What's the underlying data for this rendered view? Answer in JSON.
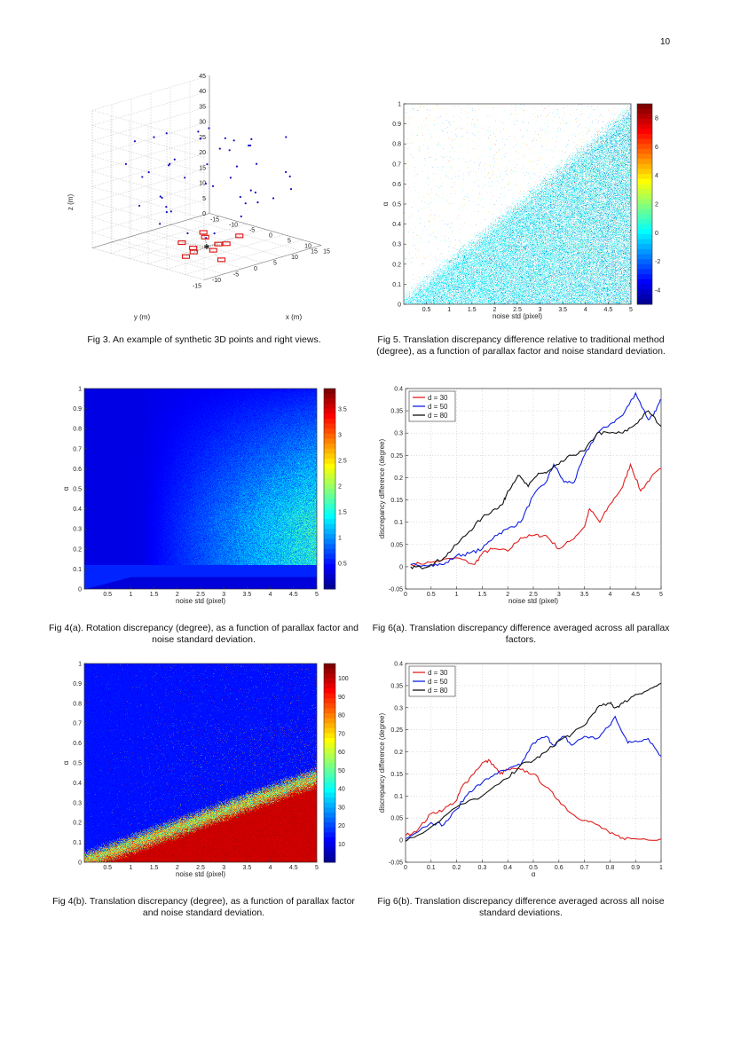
{
  "page_number": "10",
  "figures": {
    "fig3": {
      "caption": "Fig 3. An example of synthetic 3D points and right views."
    },
    "fig5": {
      "caption": "Fig 5. Translation discrepancy difference relative to traditional method (degree), as a function of parallax factor and noise standard deviation."
    },
    "fig4a": {
      "caption": "Fig 4(a). Rotation discrepancy (degree), as a function of parallax factor and noise standard deviation."
    },
    "fig6a": {
      "caption": "Fig 6(a). Translation discrepancy difference averaged across all parallax factors."
    },
    "fig4b": {
      "caption": "Fig 4(b). Translation discrepancy (degree), as a function of parallax factor and noise standard deviation."
    },
    "fig6b": {
      "caption": "Fig 6(b). Translation discrepancy difference averaged across all noise standard deviations."
    }
  },
  "chart_data": [
    {
      "id": "fig3",
      "type": "scatter",
      "projection": "3d",
      "xlabel": "x (m)",
      "ylabel": "y (m)",
      "zlabel": "z (m)",
      "xticks": [
        "-15",
        "-10",
        "-5",
        "0",
        "5",
        "10",
        "15"
      ],
      "yticks": [
        "15",
        "10",
        "5",
        "0",
        "-5",
        "-10",
        "-15"
      ],
      "zticks": [
        "0",
        "5",
        "10",
        "15",
        "20",
        "25",
        "30",
        "35",
        "40",
        "45"
      ],
      "xlim": [
        -15,
        15
      ],
      "ylim": [
        -15,
        15
      ],
      "zlim": [
        0,
        45
      ],
      "series": [
        {
          "marker": "dot",
          "color": "#1010c0"
        },
        {
          "marker": "camera",
          "color": "#e01010"
        }
      ],
      "grid": true
    },
    {
      "id": "fig5",
      "type": "heatmap",
      "xlabel": "noise std (pixel)",
      "ylabel": "α",
      "xlim": [
        0,
        5
      ],
      "ylim": [
        0,
        1
      ],
      "xticks": [
        "0.5",
        "1",
        "1.5",
        "2",
        "2.5",
        "3",
        "3.5",
        "4",
        "4.5",
        "5"
      ],
      "yticks": [
        "0",
        "0.1",
        "0.2",
        "0.3",
        "0.4",
        "0.5",
        "0.6",
        "0.7",
        "0.8",
        "0.9",
        "1"
      ],
      "colorbar": {
        "range": [
          -5,
          9
        ],
        "ticks": [
          "8",
          "6",
          "4",
          "2",
          "0",
          "-2",
          "-4"
        ],
        "colormap": "jet"
      }
    },
    {
      "id": "fig4a",
      "type": "heatmap",
      "xlabel": "noise std (pixel)",
      "ylabel": "α",
      "xlim": [
        0,
        5
      ],
      "ylim": [
        0,
        1
      ],
      "xticks": [
        "0.5",
        "1",
        "1.5",
        "2",
        "2.5",
        "3",
        "3.5",
        "4",
        "4.5",
        "5"
      ],
      "yticks": [
        "0",
        "0.1",
        "0.2",
        "0.3",
        "0.4",
        "0.5",
        "0.6",
        "0.7",
        "0.8",
        "0.9",
        "1"
      ],
      "colorbar": {
        "range": [
          0,
          3.9
        ],
        "ticks": [
          "3.5",
          "3",
          "2.5",
          "2",
          "1.5",
          "1",
          "0.5"
        ],
        "colormap": "jet"
      }
    },
    {
      "id": "fig6a",
      "type": "line",
      "xlabel": "noise std (pixel)",
      "ylabel": "discrepancy difference (degree)",
      "xlim": [
        0,
        5
      ],
      "ylim": [
        -0.05,
        0.4
      ],
      "grid": true,
      "legend": "top-left",
      "xticks": [
        "0",
        "0.5",
        "1",
        "1.5",
        "2",
        "2.5",
        "3",
        "3.5",
        "4",
        "4.5",
        "5"
      ],
      "yticks": [
        "-0.05",
        "0",
        "0.05",
        "0.1",
        "0.15",
        "0.2",
        "0.25",
        "0.3",
        "0.35",
        "0.4"
      ],
      "series": [
        {
          "name": "d = 30",
          "color": "#e02020",
          "x": [
            0.1,
            0.5,
            1,
            1.35,
            1.5,
            1.7,
            2,
            2.25,
            2.5,
            2.75,
            3,
            3.25,
            3.5,
            3.6,
            3.8,
            4,
            4.25,
            4.4,
            4.6,
            4.8,
            5
          ],
          "y": [
            0.005,
            0.01,
            0.02,
            0.005,
            0.03,
            0.04,
            0.035,
            0.065,
            0.07,
            0.07,
            0.04,
            0.06,
            0.09,
            0.13,
            0.1,
            0.14,
            0.18,
            0.23,
            0.17,
            0.2,
            0.22
          ]
        },
        {
          "name": "d = 50",
          "color": "#1020e0",
          "x": [
            0.1,
            0.5,
            0.75,
            1,
            1.25,
            1.5,
            1.75,
            2,
            2.25,
            2.5,
            2.75,
            2.9,
            3.1,
            3.3,
            3.5,
            3.75,
            4,
            4.25,
            4.5,
            4.75,
            4.9,
            5
          ],
          "y": [
            0.005,
            0.005,
            0.005,
            0.025,
            0.03,
            0.04,
            0.07,
            0.085,
            0.1,
            0.16,
            0.19,
            0.23,
            0.19,
            0.19,
            0.25,
            0.3,
            0.32,
            0.34,
            0.39,
            0.33,
            0.35,
            0.375
          ]
        },
        {
          "name": "d = 80",
          "color": "#111111",
          "x": [
            0.1,
            0.3,
            0.5,
            0.75,
            1,
            1.25,
            1.5,
            1.75,
            1.9,
            2,
            2.2,
            2.4,
            2.6,
            2.75,
            3,
            3.25,
            3.5,
            3.75,
            4,
            4.25,
            4.5,
            4.75,
            5
          ],
          "y": [
            0,
            -0.002,
            0.005,
            0.02,
            0.05,
            0.08,
            0.11,
            0.13,
            0.14,
            0.17,
            0.205,
            0.18,
            0.21,
            0.21,
            0.23,
            0.25,
            0.26,
            0.3,
            0.3,
            0.3,
            0.32,
            0.35,
            0.315
          ]
        }
      ]
    },
    {
      "id": "fig4b",
      "type": "heatmap",
      "xlabel": "noise std (pixel)",
      "ylabel": "α",
      "xlim": [
        0,
        5
      ],
      "ylim": [
        0,
        1
      ],
      "xticks": [
        "0.5",
        "1",
        "1.5",
        "2",
        "2.5",
        "3",
        "3.5",
        "4",
        "4.5",
        "5"
      ],
      "yticks": [
        "0",
        "0.1",
        "0.2",
        "0.3",
        "0.4",
        "0.5",
        "0.6",
        "0.7",
        "0.8",
        "0.9",
        "1"
      ],
      "colorbar": {
        "range": [
          0,
          108
        ],
        "ticks": [
          "100",
          "90",
          "80",
          "70",
          "60",
          "50",
          "40",
          "30",
          "20",
          "10"
        ],
        "colormap": "jet"
      }
    },
    {
      "id": "fig6b",
      "type": "line",
      "xlabel": "α",
      "ylabel": "discrepancy difference (degree)",
      "xlim": [
        0,
        1
      ],
      "ylim": [
        -0.05,
        0.4
      ],
      "grid": true,
      "legend": "top-left",
      "xticks": [
        "0",
        "0.1",
        "0.2",
        "0.3",
        "0.4",
        "0.5",
        "0.6",
        "0.7",
        "0.8",
        "0.9",
        "1"
      ],
      "yticks": [
        "-0.05",
        "0",
        "0.05",
        "0.1",
        "0.15",
        "0.2",
        "0.25",
        "0.3",
        "0.35",
        "0.4"
      ],
      "series": [
        {
          "name": "d = 30",
          "color": "#e02020",
          "x": [
            0,
            0.05,
            0.1,
            0.15,
            0.2,
            0.22,
            0.25,
            0.3,
            0.33,
            0.37,
            0.4,
            0.45,
            0.5,
            0.55,
            0.6,
            0.65,
            0.7,
            0.75,
            0.8,
            0.85,
            0.9,
            1
          ],
          "y": [
            0.01,
            0.025,
            0.06,
            0.07,
            0.09,
            0.12,
            0.14,
            0.175,
            0.18,
            0.15,
            0.16,
            0.16,
            0.15,
            0.12,
            0.09,
            0.06,
            0.045,
            0.035,
            0.015,
            0.005,
            0.003,
            0.003
          ]
        },
        {
          "name": "d = 50",
          "color": "#1020e0",
          "x": [
            0,
            0.1,
            0.15,
            0.2,
            0.25,
            0.3,
            0.35,
            0.4,
            0.45,
            0.5,
            0.55,
            0.58,
            0.62,
            0.65,
            0.7,
            0.75,
            0.8,
            0.82,
            0.87,
            0.9,
            0.95,
            1
          ],
          "y": [
            0.003,
            0.04,
            0.035,
            0.07,
            0.11,
            0.13,
            0.15,
            0.16,
            0.17,
            0.22,
            0.235,
            0.215,
            0.235,
            0.215,
            0.235,
            0.23,
            0.26,
            0.28,
            0.22,
            0.225,
            0.23,
            0.19
          ]
        },
        {
          "name": "d = 80",
          "color": "#111111",
          "x": [
            0,
            0.1,
            0.2,
            0.3,
            0.4,
            0.45,
            0.5,
            0.55,
            0.6,
            0.65,
            0.7,
            0.75,
            0.8,
            0.82,
            0.85,
            0.9,
            0.95,
            1
          ],
          "y": [
            -0.003,
            0.03,
            0.075,
            0.1,
            0.14,
            0.17,
            0.18,
            0.2,
            0.225,
            0.24,
            0.26,
            0.3,
            0.31,
            0.3,
            0.31,
            0.33,
            0.34,
            0.355
          ]
        }
      ]
    }
  ]
}
